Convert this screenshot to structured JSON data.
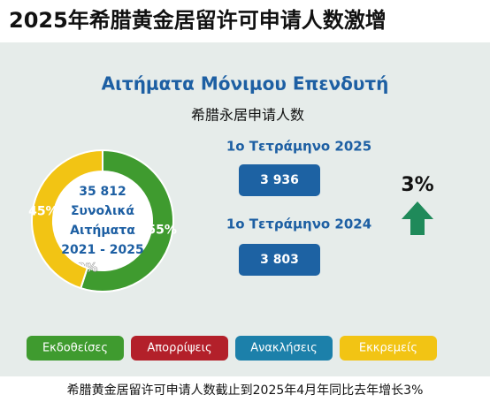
{
  "header": {
    "title": "2025年希腊黄金居留许可申请人数激增"
  },
  "card": {
    "title": "Αιτήματα Μόνιμου Επενδυτή",
    "subtitle": "希腊永居申请人数"
  },
  "chart_data": {
    "type": "pie",
    "categories": [
      "Εκδοθείσες",
      "Απορρίψεις",
      "Ανακλήσεις",
      "Εκκρεμείς"
    ],
    "values": [
      55,
      0,
      null,
      45
    ],
    "value_labels": [
      "55%",
      "0%",
      null,
      "45%"
    ],
    "colors": [
      "#3f9b2f",
      "#b3202a",
      "#1c80aa",
      "#f2c414"
    ],
    "center_text": [
      "35 812",
      "Συνολικά",
      "Αιτήματα",
      "2021 - 2025"
    ]
  },
  "stats": [
    {
      "label": "1ο Τετράμηνο 2025",
      "value": "3 936"
    },
    {
      "label": "1ο Τετράμηνο 2024",
      "value": "3 803"
    }
  ],
  "change": "3%",
  "footer": "希腊黄金居留许可申请人数截止到2025年4月年同比去年增长3%"
}
